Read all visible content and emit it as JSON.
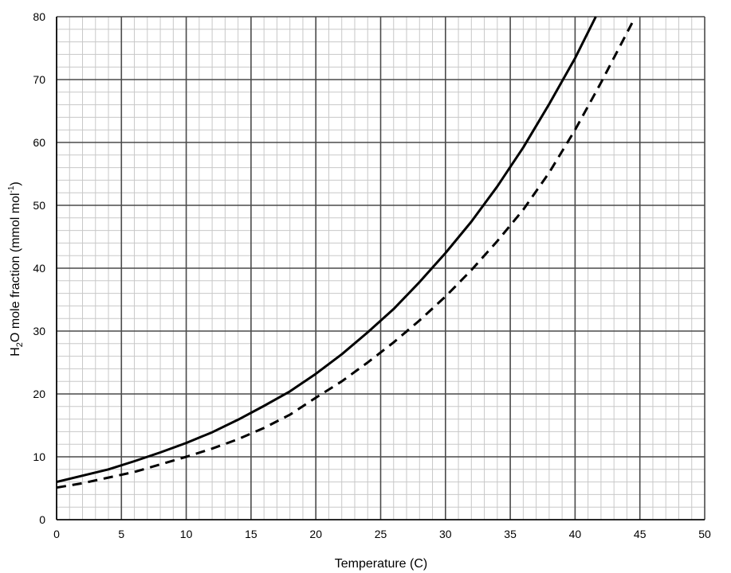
{
  "chart_data": {
    "type": "line",
    "xlabel": "Temperature (C)",
    "ylabel": {
      "main": "H",
      "sub": "2",
      "rest": "O mole fraction (mmol mol",
      "sup": "-1",
      "end": ")"
    },
    "xlim": [
      0,
      50
    ],
    "ylim": [
      0,
      80
    ],
    "xticks": [
      0,
      5,
      10,
      15,
      20,
      25,
      30,
      35,
      40,
      45,
      50
    ],
    "yticks": [
      0,
      10,
      20,
      30,
      40,
      50,
      60,
      70,
      80
    ],
    "grid": true,
    "minor_grid": true,
    "series": [
      {
        "style": "solid",
        "color": "#000000",
        "x": [
          0,
          2,
          4,
          6,
          8,
          10,
          12,
          14,
          16,
          18,
          20,
          22,
          24,
          26,
          28,
          30,
          32,
          34,
          36,
          38,
          40,
          41.6
        ],
        "y": [
          6.0,
          7.0,
          8.0,
          9.3,
          10.7,
          12.2,
          13.9,
          15.9,
          18.1,
          20.4,
          23.2,
          26.3,
          29.8,
          33.5,
          37.8,
          42.4,
          47.4,
          53.0,
          59.2,
          66.1,
          73.4,
          80.0
        ]
      },
      {
        "style": "dashed",
        "color": "#000000",
        "x": [
          0,
          2,
          4,
          6,
          8,
          10,
          12,
          14,
          16,
          18,
          20,
          22,
          24,
          26,
          28,
          30,
          32,
          34,
          36,
          38,
          40,
          42,
          44.4
        ],
        "y": [
          5.1,
          5.8,
          6.7,
          7.6,
          8.8,
          10.0,
          11.3,
          12.8,
          14.6,
          16.7,
          19.4,
          22.0,
          25.0,
          28.2,
          31.7,
          35.5,
          39.7,
          44.3,
          49.3,
          55.2,
          62.0,
          69.5,
          79.0
        ]
      }
    ]
  }
}
